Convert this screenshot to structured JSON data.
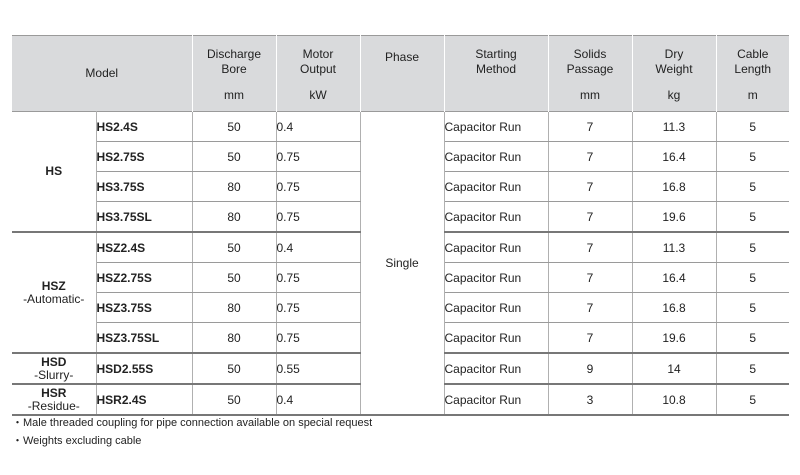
{
  "headers": {
    "model": "Model",
    "discharge_bore": "Discharge\nBore",
    "motor_output": "Motor\nOutput",
    "phase": "Phase",
    "starting_method": "Starting\nMethod",
    "solids_passage": "Solids\nPassage",
    "dry_weight": "Dry\nWeight",
    "cable_length": "Cable\nLength"
  },
  "units": {
    "discharge_bore": "mm",
    "motor_output": "kW",
    "solids_passage": "mm",
    "dry_weight": "kg",
    "cable_length": "m"
  },
  "phase_value": "Single",
  "groups": [
    {
      "name": "HS",
      "sub": "",
      "rows": [
        {
          "model": "HS2.4S",
          "bore": "50",
          "output": "0.4",
          "method": "Capacitor Run",
          "solids": "7",
          "weight": "11.3",
          "cable": "5"
        },
        {
          "model": "HS2.75S",
          "bore": "50",
          "output": "0.75",
          "method": "Capacitor Run",
          "solids": "7",
          "weight": "16.4",
          "cable": "5"
        },
        {
          "model": "HS3.75S",
          "bore": "80",
          "output": "0.75",
          "method": "Capacitor Run",
          "solids": "7",
          "weight": "16.8",
          "cable": "5"
        },
        {
          "model": "HS3.75SL",
          "bore": "80",
          "output": "0.75",
          "method": "Capacitor Run",
          "solids": "7",
          "weight": "19.6",
          "cable": "5"
        }
      ]
    },
    {
      "name": "HSZ",
      "sub": "-Automatic-",
      "rows": [
        {
          "model": "HSZ2.4S",
          "bore": "50",
          "output": "0.4",
          "method": "Capacitor Run",
          "solids": "7",
          "weight": "11.3",
          "cable": "5"
        },
        {
          "model": "HSZ2.75S",
          "bore": "50",
          "output": "0.75",
          "method": "Capacitor Run",
          "solids": "7",
          "weight": "16.4",
          "cable": "5"
        },
        {
          "model": "HSZ3.75S",
          "bore": "80",
          "output": "0.75",
          "method": "Capacitor Run",
          "solids": "7",
          "weight": "16.8",
          "cable": "5"
        },
        {
          "model": "HSZ3.75SL",
          "bore": "80",
          "output": "0.75",
          "method": "Capacitor Run",
          "solids": "7",
          "weight": "19.6",
          "cable": "5"
        }
      ]
    },
    {
      "name": "HSD",
      "sub": "-Slurry-",
      "rows": [
        {
          "model": "HSD2.55S",
          "bore": "50",
          "output": "0.55",
          "method": "Capacitor Run",
          "solids": "9",
          "weight": "14",
          "cable": "5"
        }
      ]
    },
    {
      "name": "HSR",
      "sub": "-Residue-",
      "rows": [
        {
          "model": "HSR2.4S",
          "bore": "50",
          "output": "0.4",
          "method": "Capacitor Run",
          "solids": "3",
          "weight": "10.8",
          "cable": "5"
        }
      ]
    }
  ],
  "notes": [
    "・Male threaded coupling for pipe connection available on special request",
    "・Weights excluding cable"
  ]
}
